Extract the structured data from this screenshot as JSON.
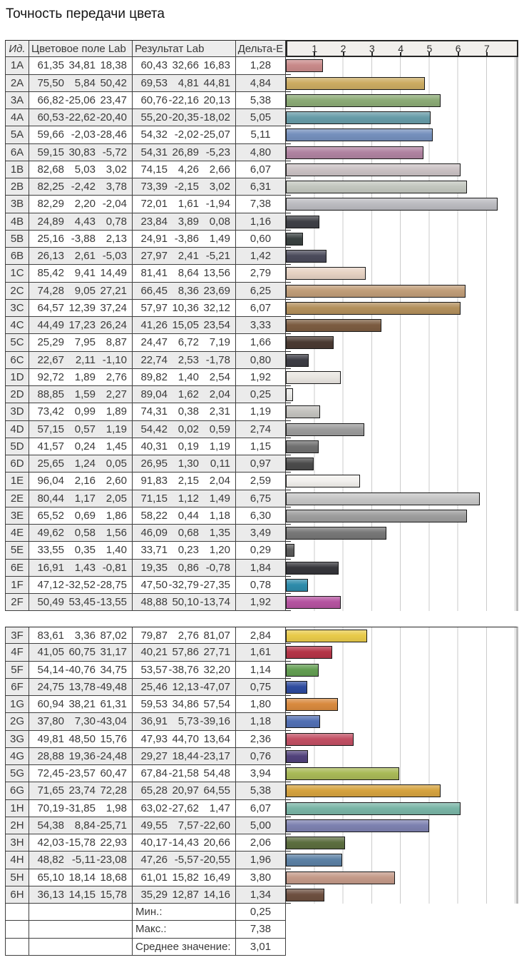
{
  "title": "Точность передачи цвета",
  "table": {
    "headers": {
      "id": "Ид.",
      "field": "Цветовое поле Lab",
      "result": "Результат Lab",
      "delta": "Дельта-E"
    }
  },
  "chart": {
    "axis_ticks": [
      "1",
      "2",
      "3",
      "4",
      "5",
      "6",
      "7"
    ],
    "gridline_color": "#cbcbcb"
  },
  "sections": [
    {
      "rows": [
        {
          "id": "1A",
          "field": [
            "61,35",
            "34,81",
            "18,38"
          ],
          "result": [
            "60,43",
            "32,66",
            "16,83"
          ],
          "delta": "1,28",
          "color": "#c98a8a"
        },
        {
          "id": "2A",
          "field": [
            "75,50",
            "5,84",
            "50,42"
          ],
          "result": [
            "69,53",
            "4,81",
            "44,81"
          ],
          "delta": "4,84",
          "color": "#ccac62"
        },
        {
          "id": "3A",
          "field": [
            "66,82",
            "-25,06",
            "23,47"
          ],
          "result": [
            "60,76",
            "-22,16",
            "20,13"
          ],
          "delta": "5,38",
          "color": "#8cab76"
        },
        {
          "id": "4A",
          "field": [
            "60,53",
            "-22,62",
            "-20,40"
          ],
          "result": [
            "55,20",
            "-20,35",
            "-18,02"
          ],
          "delta": "5,05",
          "color": "#679ca8"
        },
        {
          "id": "5A",
          "field": [
            "59,66",
            "-2,03",
            "-28,46"
          ],
          "result": [
            "54,32",
            "-2,02",
            "-25,07"
          ],
          "delta": "5,11",
          "color": "#7590bd"
        },
        {
          "id": "6A",
          "field": [
            "59,15",
            "30,83",
            "-5,72"
          ],
          "result": [
            "54,31",
            "26,89",
            "-5,23"
          ],
          "delta": "4,80",
          "color": "#b083a1"
        },
        {
          "id": "1B",
          "field": [
            "82,68",
            "5,03",
            "3,02"
          ],
          "result": [
            "74,15",
            "4,26",
            "2,66"
          ],
          "delta": "6,07",
          "color": "#cbc2c4"
        },
        {
          "id": "2B",
          "field": [
            "82,25",
            "-2,42",
            "3,78"
          ],
          "result": [
            "73,39",
            "-2,15",
            "3,02"
          ],
          "delta": "6,31",
          "color": "#c3c7bf"
        },
        {
          "id": "3B",
          "field": [
            "82,29",
            "2,20",
            "-2,04"
          ],
          "result": [
            "72,01",
            "1,61",
            "-1,94"
          ],
          "delta": "7,38",
          "color": "#bcbcc1"
        },
        {
          "id": "4B",
          "field": [
            "24,89",
            "4,43",
            "0,78"
          ],
          "result": [
            "23,84",
            "3,89",
            "0,08"
          ],
          "delta": "1,16",
          "color": "#3f4046"
        },
        {
          "id": "5B",
          "field": [
            "25,16",
            "-3,88",
            "2,13"
          ],
          "result": [
            "24,91",
            "-3,86",
            "1,49"
          ],
          "delta": "0,60",
          "color": "#394140"
        },
        {
          "id": "6B",
          "field": [
            "26,13",
            "2,61",
            "-5,03"
          ],
          "result": [
            "27,97",
            "2,41",
            "-5,21"
          ],
          "delta": "1,42",
          "color": "#4b4b5b"
        },
        {
          "id": "1C",
          "field": [
            "85,42",
            "9,41",
            "14,49"
          ],
          "result": [
            "81,41",
            "8,64",
            "13,56"
          ],
          "delta": "2,79",
          "color": "#e6d2c3"
        },
        {
          "id": "2C",
          "field": [
            "74,28",
            "9,05",
            "27,21"
          ],
          "result": [
            "66,45",
            "8,36",
            "23,69"
          ],
          "delta": "6,25",
          "color": "#c09d78"
        },
        {
          "id": "3C",
          "field": [
            "64,57",
            "12,39",
            "37,24"
          ],
          "result": [
            "57,97",
            "10,36",
            "32,12"
          ],
          "delta": "6,07",
          "color": "#b3905c"
        },
        {
          "id": "4C",
          "field": [
            "44,49",
            "17,23",
            "26,24"
          ],
          "result": [
            "41,26",
            "15,05",
            "23,54"
          ],
          "delta": "3,33",
          "color": "#7c5c41"
        },
        {
          "id": "5C",
          "field": [
            "25,29",
            "7,95",
            "8,87"
          ],
          "result": [
            "24,47",
            "6,72",
            "7,19"
          ],
          "delta": "1,66",
          "color": "#4a3a32"
        },
        {
          "id": "6C",
          "field": [
            "22,67",
            "2,11",
            "-1,10"
          ],
          "result": [
            "22,74",
            "2,53",
            "-1,78"
          ],
          "delta": "0,80",
          "color": "#3c3c44"
        },
        {
          "id": "1D",
          "field": [
            "92,72",
            "1,89",
            "2,76"
          ],
          "result": [
            "89,82",
            "1,40",
            "2,54"
          ],
          "delta": "1,92",
          "color": "#e9e6e1"
        },
        {
          "id": "2D",
          "field": [
            "88,85",
            "1,59",
            "2,27"
          ],
          "result": [
            "89,04",
            "1,62",
            "2,04"
          ],
          "delta": "0,25",
          "color": "#e9e9e7"
        },
        {
          "id": "3D",
          "field": [
            "73,42",
            "0,99",
            "1,89"
          ],
          "result": [
            "74,31",
            "0,38",
            "2,31"
          ],
          "delta": "1,19",
          "color": "#c4c3bf"
        },
        {
          "id": "4D",
          "field": [
            "57,15",
            "0,57",
            "1,19"
          ],
          "result": [
            "54,42",
            "0,02",
            "0,59"
          ],
          "delta": "2,74",
          "color": "#9c9c9c"
        },
        {
          "id": "5D",
          "field": [
            "41,57",
            "0,24",
            "1,45"
          ],
          "result": [
            "40,31",
            "0,19",
            "1,19"
          ],
          "delta": "1,15",
          "color": "#707070"
        },
        {
          "id": "6D",
          "field": [
            "25,65",
            "1,24",
            "0,05"
          ],
          "result": [
            "26,95",
            "1,30",
            "0,11"
          ],
          "delta": "0,97",
          "color": "#4b4b4b"
        },
        {
          "id": "1E",
          "field": [
            "96,04",
            "2,16",
            "2,60"
          ],
          "result": [
            "91,83",
            "2,15",
            "2,04"
          ],
          "delta": "2,59",
          "color": "#f3f1ee"
        },
        {
          "id": "2E",
          "field": [
            "80,44",
            "1,17",
            "2,05"
          ],
          "result": [
            "71,15",
            "1,12",
            "1,49"
          ],
          "delta": "6,75",
          "color": "#c6c6c6"
        },
        {
          "id": "3E",
          "field": [
            "65,52",
            "0,69",
            "1,86"
          ],
          "result": [
            "58,22",
            "0,44",
            "1,18"
          ],
          "delta": "6,30",
          "color": "#9e9e9e"
        },
        {
          "id": "4E",
          "field": [
            "49,62",
            "0,58",
            "1,56"
          ],
          "result": [
            "46,09",
            "0,68",
            "1,35"
          ],
          "delta": "3,49",
          "color": "#777777"
        },
        {
          "id": "5E",
          "field": [
            "33,55",
            "0,35",
            "1,40"
          ],
          "result": [
            "33,71",
            "0,23",
            "1,20"
          ],
          "delta": "0,29",
          "color": "#5b5b5b"
        },
        {
          "id": "6E",
          "field": [
            "16,91",
            "1,43",
            "-0,81"
          ],
          "result": [
            "19,35",
            "0,86",
            "-0,78"
          ],
          "delta": "1,84",
          "color": "#36363b"
        },
        {
          "id": "1F",
          "field": [
            "47,12",
            "-32,52",
            "-28,75"
          ],
          "result": [
            "47,50",
            "-32,79",
            "-27,35"
          ],
          "delta": "0,78",
          "color": "#2e8cab"
        },
        {
          "id": "2F",
          "field": [
            "50,49",
            "53,45",
            "-13,55"
          ],
          "result": [
            "48,88",
            "50,10",
            "-13,74"
          ],
          "delta": "1,92",
          "color": "#b553a0"
        }
      ]
    },
    {
      "rows": [
        {
          "id": "3F",
          "field": [
            "83,61",
            "3,36",
            "87,02"
          ],
          "result": [
            "79,87",
            "2,76",
            "81,07"
          ],
          "delta": "2,84",
          "color": "#e9cb4a"
        },
        {
          "id": "4F",
          "field": [
            "41,05",
            "60,75",
            "31,17"
          ],
          "result": [
            "40,21",
            "57,86",
            "27,71"
          ],
          "delta": "1,61",
          "color": "#b53447"
        },
        {
          "id": "5F",
          "field": [
            "54,14",
            "-40,76",
            "34,75"
          ],
          "result": [
            "53,57",
            "-38,76",
            "32,20"
          ],
          "delta": "1,14",
          "color": "#639e52"
        },
        {
          "id": "6F",
          "field": [
            "24,75",
            "13,78",
            "-49,48"
          ],
          "result": [
            "25,46",
            "12,13",
            "-47,07"
          ],
          "delta": "0,75",
          "color": "#2e4b9e"
        },
        {
          "id": "1G",
          "field": [
            "60,94",
            "38,21",
            "61,31"
          ],
          "result": [
            "59,53",
            "34,86",
            "57,54"
          ],
          "delta": "1,80",
          "color": "#d98a3f"
        },
        {
          "id": "2G",
          "field": [
            "37,80",
            "7,30",
            "-43,04"
          ],
          "result": [
            "36,91",
            "5,73",
            "-39,16"
          ],
          "delta": "1,18",
          "color": "#5270b4"
        },
        {
          "id": "3G",
          "field": [
            "49,81",
            "48,50",
            "15,76"
          ],
          "result": [
            "47,93",
            "44,70",
            "13,64"
          ],
          "delta": "2,36",
          "color": "#c25064"
        },
        {
          "id": "4G",
          "field": [
            "28,88",
            "19,36",
            "-24,48"
          ],
          "result": [
            "29,27",
            "18,44",
            "-23,17"
          ],
          "delta": "0,76",
          "color": "#51427b"
        },
        {
          "id": "5G",
          "field": [
            "72,45",
            "-23,57",
            "60,47"
          ],
          "result": [
            "67,84",
            "-21,58",
            "54,48"
          ],
          "delta": "3,94",
          "color": "#a9ba57"
        },
        {
          "id": "6G",
          "field": [
            "71,65",
            "23,74",
            "72,28"
          ],
          "result": [
            "65,28",
            "20,97",
            "64,55"
          ],
          "delta": "5,38",
          "color": "#d6a33f"
        },
        {
          "id": "1H",
          "field": [
            "70,19",
            "-31,85",
            "1,98"
          ],
          "result": [
            "63,02",
            "-27,62",
            "1,47"
          ],
          "delta": "6,07",
          "color": "#79b5a6"
        },
        {
          "id": "2H",
          "field": [
            "54,38",
            "8,84",
            "-25,71"
          ],
          "result": [
            "49,55",
            "7,57",
            "-22,60"
          ],
          "delta": "5,00",
          "color": "#7d81b0"
        },
        {
          "id": "3H",
          "field": [
            "42,03",
            "-15,78",
            "22,93"
          ],
          "result": [
            "40,17",
            "-14,43",
            "20,66"
          ],
          "delta": "2,06",
          "color": "#5c6e3f"
        },
        {
          "id": "4H",
          "field": [
            "48,82",
            "-5,11",
            "-23,08"
          ],
          "result": [
            "47,26",
            "-5,57",
            "-20,55"
          ],
          "delta": "1,96",
          "color": "#5c81a5"
        },
        {
          "id": "5H",
          "field": [
            "65,10",
            "18,14",
            "18,68"
          ],
          "result": [
            "61,01",
            "15,82",
            "16,49"
          ],
          "delta": "3,80",
          "color": "#c49a89"
        },
        {
          "id": "6H",
          "field": [
            "36,13",
            "14,15",
            "15,78"
          ],
          "result": [
            "35,29",
            "12,87",
            "14,16"
          ],
          "delta": "1,34",
          "color": "#6e5040"
        }
      ]
    }
  ],
  "summary": [
    {
      "label": "Мин.:",
      "value": "0,25"
    },
    {
      "label": "Макс.:",
      "value": "7,38"
    },
    {
      "label": "Среднее значение:",
      "value": "3,01"
    }
  ],
  "chart_data": [
    {
      "type": "bar",
      "orientation": "horizontal",
      "title": "Точность передачи цвета",
      "grid": true,
      "xlim": [
        0,
        8
      ],
      "xticks": [
        1,
        2,
        3,
        4,
        5,
        6,
        7
      ],
      "categories": [
        "1A",
        "2A",
        "3A",
        "4A",
        "5A",
        "6A",
        "1B",
        "2B",
        "3B",
        "4B",
        "5B",
        "6B",
        "1C",
        "2C",
        "3C",
        "4C",
        "5C",
        "6C",
        "1D",
        "2D",
        "3D",
        "4D",
        "5D",
        "6D",
        "1E",
        "2E",
        "3E",
        "4E",
        "5E",
        "6E",
        "1F",
        "2F"
      ],
      "values": [
        1.28,
        4.84,
        5.38,
        5.05,
        5.11,
        4.8,
        6.07,
        6.31,
        7.38,
        1.16,
        0.6,
        1.42,
        2.79,
        6.25,
        6.07,
        3.33,
        1.66,
        0.8,
        1.92,
        0.25,
        1.19,
        2.74,
        1.15,
        0.97,
        2.59,
        6.75,
        6.3,
        3.49,
        0.29,
        1.84,
        0.78,
        1.92
      ],
      "colors": [
        "#c98a8a",
        "#ccac62",
        "#8cab76",
        "#679ca8",
        "#7590bd",
        "#b083a1",
        "#cbc2c4",
        "#c3c7bf",
        "#bcbcc1",
        "#3f4046",
        "#394140",
        "#4b4b5b",
        "#e6d2c3",
        "#c09d78",
        "#b3905c",
        "#7c5c41",
        "#4a3a32",
        "#3c3c44",
        "#e9e6e1",
        "#e9e9e7",
        "#c4c3bf",
        "#9c9c9c",
        "#707070",
        "#4b4b4b",
        "#f3f1ee",
        "#c6c6c6",
        "#9e9e9e",
        "#777777",
        "#5b5b5b",
        "#36363b",
        "#2e8cab",
        "#b553a0"
      ]
    },
    {
      "type": "bar",
      "orientation": "horizontal",
      "title": "Точность передачи цвета",
      "grid": true,
      "xlim": [
        0,
        8
      ],
      "xticks": [
        1,
        2,
        3,
        4,
        5,
        6,
        7
      ],
      "categories": [
        "3F",
        "4F",
        "5F",
        "6F",
        "1G",
        "2G",
        "3G",
        "4G",
        "5G",
        "6G",
        "1H",
        "2H",
        "3H",
        "4H",
        "5H",
        "6H"
      ],
      "values": [
        2.84,
        1.61,
        1.14,
        0.75,
        1.8,
        1.18,
        2.36,
        0.76,
        3.94,
        5.38,
        6.07,
        5.0,
        2.06,
        1.96,
        3.8,
        1.34
      ],
      "colors": [
        "#e9cb4a",
        "#b53447",
        "#639e52",
        "#2e4b9e",
        "#d98a3f",
        "#5270b4",
        "#c25064",
        "#51427b",
        "#a9ba57",
        "#d6a33f",
        "#79b5a6",
        "#7d81b0",
        "#5c6e3f",
        "#5c81a5",
        "#c49a89",
        "#6e5040"
      ],
      "stats": {
        "min": 0.25,
        "max": 7.38,
        "mean": 3.01
      }
    }
  ]
}
